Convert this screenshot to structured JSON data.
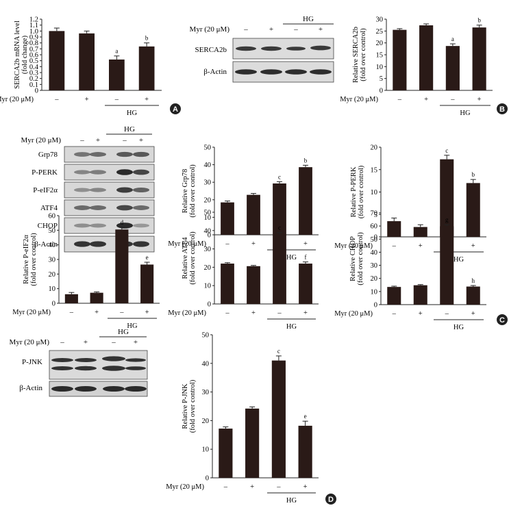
{
  "conditions": {
    "myr_label": "Myr (20 μM)",
    "myr_values": [
      "–",
      "+",
      "–",
      "+"
    ],
    "hg_label": "HG"
  },
  "panels": {
    "A": "A",
    "B": "B",
    "C": "C",
    "D": "D"
  },
  "blots": {
    "b": {
      "rows": [
        "SERCA2b",
        "β-Actin"
      ]
    },
    "c": {
      "rows": [
        "Grp78",
        "P-PERK",
        "P-eIF2α",
        "ATF4",
        "CHOP",
        "β-Actin"
      ]
    },
    "d": {
      "rows": [
        "P-JNK",
        "β-Actin"
      ]
    }
  },
  "chart_data": [
    {
      "id": "serca2b-mrna",
      "type": "bar",
      "ylabel": [
        "SERCA2b mRNA level",
        "(fold change)"
      ],
      "ylim": [
        0,
        1.2
      ],
      "yticks": [
        "0",
        "0.1",
        "0.2",
        "0.3",
        "0.4",
        "0.5",
        "0.6",
        "0.7",
        "0.8",
        "0.9",
        "1.0",
        "1.1",
        "1.2"
      ],
      "values": [
        1.0,
        0.96,
        0.52,
        0.74
      ],
      "errors": [
        0.05,
        0.04,
        0.06,
        0.06
      ],
      "letters": [
        "",
        "",
        "a",
        "b"
      ]
    },
    {
      "id": "serca2b-protein",
      "type": "bar",
      "ylabel": [
        "Relative SERCA2b",
        "(fold over control)"
      ],
      "ylim": [
        0,
        30
      ],
      "yticks": [
        "0",
        "5",
        "10",
        "15",
        "20",
        "25",
        "30"
      ],
      "values": [
        25.5,
        27.4,
        18.7,
        26.5
      ],
      "errors": [
        0.5,
        0.6,
        0.9,
        1.0
      ],
      "letters": [
        "",
        "",
        "a",
        "b"
      ]
    },
    {
      "id": "grp78",
      "type": "bar",
      "ylabel": [
        "Relative Grp78",
        "(fold over control)"
      ],
      "ylim": [
        0,
        50
      ],
      "yticks": [
        "0",
        "10",
        "20",
        "30",
        "40",
        "50"
      ],
      "values": [
        18.5,
        22.8,
        29.3,
        38.6
      ],
      "errors": [
        0.8,
        0.8,
        1.0,
        1.1
      ],
      "letters": [
        "",
        "",
        "c",
        "b"
      ]
    },
    {
      "id": "p-perk",
      "type": "bar",
      "ylabel": [
        "Relative P-PERK",
        "(fold over control)"
      ],
      "ylim": [
        0,
        20
      ],
      "yticks": [
        "0",
        "5",
        "10",
        "15",
        "20"
      ],
      "values": [
        3.5,
        2.2,
        17.3,
        12.0
      ],
      "errors": [
        0.7,
        0.5,
        0.9,
        0.8
      ],
      "letters": [
        "",
        "",
        "c",
        "b"
      ]
    },
    {
      "id": "p-eif2a",
      "type": "bar",
      "ylabel": [
        "Relative P-eIF2α",
        "(fold over control)"
      ],
      "ylim": [
        0,
        60
      ],
      "yticks": [
        "0",
        "10",
        "20",
        "30",
        "40",
        "50",
        "60"
      ],
      "values": [
        6.2,
        7.2,
        50.5,
        26.5
      ],
      "errors": [
        1.2,
        0.6,
        1.5,
        1.6
      ],
      "letters": [
        "",
        "",
        "d",
        "e"
      ]
    },
    {
      "id": "atf4",
      "type": "bar",
      "ylabel": [
        "Relative ATF4",
        "(fold over control)"
      ],
      "ylim": [
        0,
        50
      ],
      "yticks": [
        "0",
        "10",
        "20",
        "30",
        "40",
        "50"
      ],
      "values": [
        22.0,
        20.6,
        37.8,
        22.0
      ],
      "errors": [
        0.5,
        0.4,
        1.1,
        0.9
      ],
      "letters": [
        "",
        "",
        "c",
        "f"
      ]
    },
    {
      "id": "chop",
      "type": "bar",
      "ylabel": [
        "Relative CHOP",
        "(fold over control)"
      ],
      "ylim": [
        0,
        70
      ],
      "yticks": [
        "0",
        "10",
        "20",
        "30",
        "40",
        "50",
        "60",
        "70"
      ],
      "values": [
        13.5,
        14.8,
        59.8,
        13.8
      ],
      "errors": [
        0.6,
        0.5,
        1.2,
        0.8
      ],
      "letters": [
        "",
        "",
        "g",
        "h"
      ]
    },
    {
      "id": "p-jnk",
      "type": "bar",
      "ylabel": [
        "Relative P-JNK",
        "(fold over control)"
      ],
      "ylim": [
        0,
        50
      ],
      "yticks": [
        "0",
        "10",
        "20",
        "30",
        "40",
        "50"
      ],
      "values": [
        17.2,
        24.2,
        41.0,
        18.2
      ],
      "errors": [
        0.6,
        0.6,
        1.6,
        1.6
      ],
      "letters": [
        "",
        "",
        "c",
        "e"
      ]
    }
  ],
  "colors": {
    "bar": "#2a1a17",
    "ink": "#222222",
    "blot_bg": "#d6d6d6"
  }
}
